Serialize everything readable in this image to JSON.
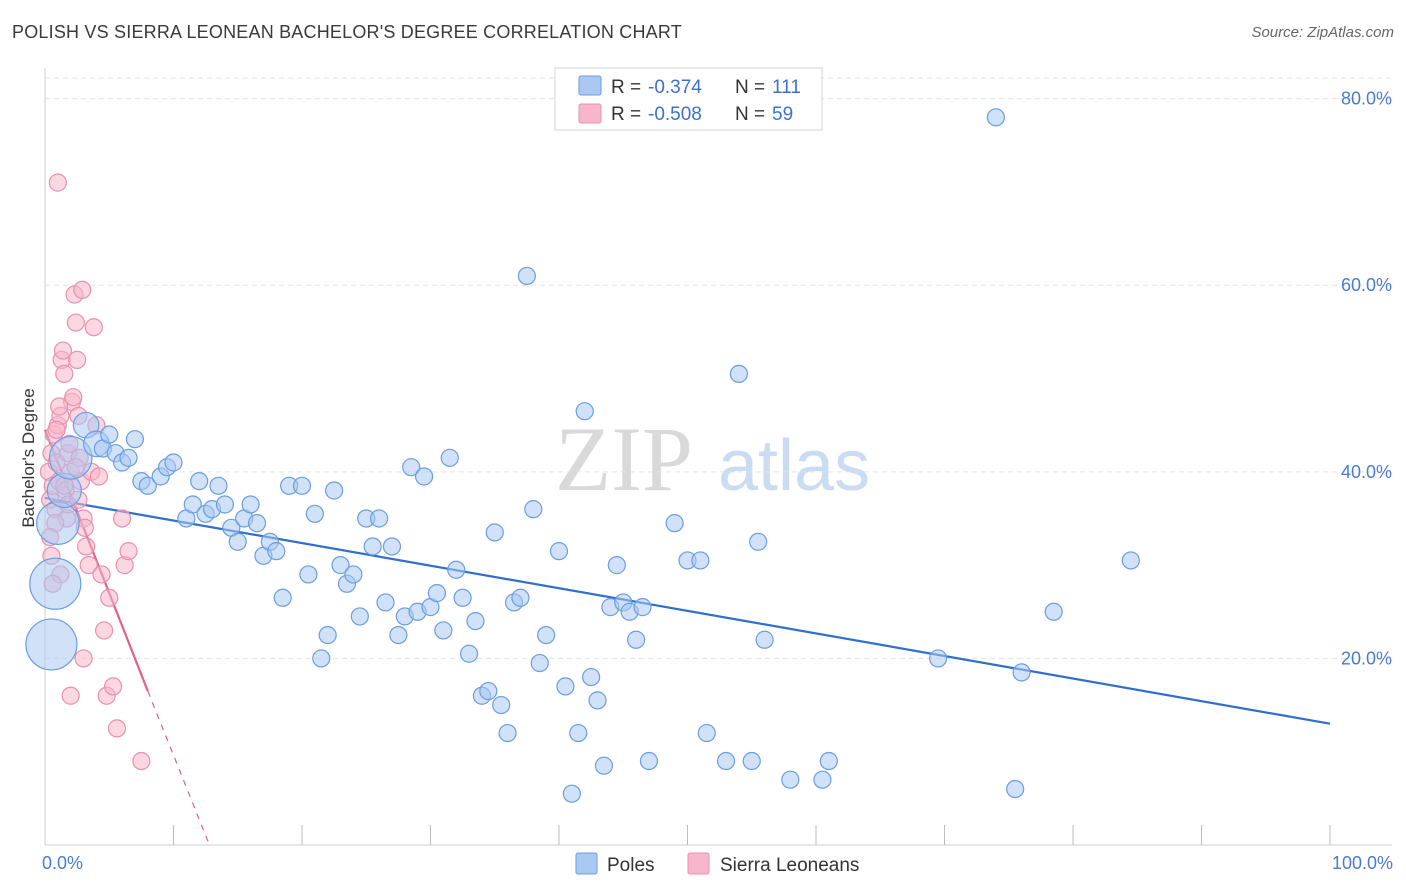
{
  "title": "POLISH VS SIERRA LEONEAN BACHELOR'S DEGREE CORRELATION CHART",
  "source": "Source: ZipAtlas.com",
  "watermark": {
    "zip": "ZIP",
    "atlas": "atlas"
  },
  "colors": {
    "poles_fill": "#a9c8f2",
    "poles_stroke": "#6a9ee0",
    "poles_line": "#2f6fce",
    "sierra_fill": "#f7b6cb",
    "sierra_stroke": "#e890ae",
    "sierra_line": "#e0608e",
    "grid": "#e3e3e3",
    "axis_text": "#4a7bd0"
  },
  "legend": {
    "rows": [
      {
        "r_label": "R =",
        "r_value": "-0.374",
        "n_label": "N =",
        "n_value": "111"
      },
      {
        "r_label": "R =",
        "r_value": "-0.508",
        "n_label": "N =",
        "n_value": "59"
      }
    ]
  },
  "bottom_legend": {
    "poles": "Poles",
    "sierra": "Sierra Leoneans"
  },
  "chart_data": {
    "type": "scatter",
    "title": "POLISH VS SIERRA LEONEAN BACHELOR'S DEGREE CORRELATION CHART",
    "xlabel": "",
    "ylabel": "Bachelor's Degree",
    "xlim": [
      0,
      100
    ],
    "ylim": [
      0,
      82
    ],
    "x_tick_labels": [
      "0.0%",
      "100.0%"
    ],
    "y_ticks": [
      20,
      40,
      60,
      80
    ],
    "y_tick_labels": [
      "20.0%",
      "40.0%",
      "60.0%",
      "80.0%"
    ],
    "grid": true,
    "series": [
      {
        "name": "Poles",
        "r": -0.374,
        "n": 111,
        "trend": {
          "x0": 0,
          "y0": 37.2,
          "x1": 100,
          "y1": 13.0
        },
        "points": [
          [
            0.5,
            21.5,
            3
          ],
          [
            0.8,
            28,
            3
          ],
          [
            1.0,
            34.5,
            2.5
          ],
          [
            1.5,
            38,
            2
          ],
          [
            2.0,
            41.5,
            2.5
          ],
          [
            3.2,
            45,
            1.5
          ],
          [
            4.0,
            43,
            1.5
          ],
          [
            4.5,
            42.5,
            1
          ],
          [
            5.0,
            44,
            1
          ],
          [
            5.5,
            42,
            1
          ],
          [
            6.0,
            41,
            1
          ],
          [
            6.5,
            41.5,
            1
          ],
          [
            7.0,
            43.5,
            1
          ],
          [
            7.5,
            39,
            1
          ],
          [
            8.0,
            38.5,
            1
          ],
          [
            9.0,
            39.5,
            1
          ],
          [
            9.5,
            40.5,
            1
          ],
          [
            10.0,
            41,
            1
          ],
          [
            11.0,
            35,
            1
          ],
          [
            11.5,
            36.5,
            1
          ],
          [
            12.0,
            39,
            1
          ],
          [
            12.5,
            35.5,
            1
          ],
          [
            13.0,
            36,
            1
          ],
          [
            13.5,
            38.5,
            1
          ],
          [
            14.0,
            36.5,
            1
          ],
          [
            14.5,
            34,
            1
          ],
          [
            15.0,
            32.5,
            1
          ],
          [
            15.5,
            35,
            1
          ],
          [
            16.0,
            36.5,
            1
          ],
          [
            16.5,
            34.5,
            1
          ],
          [
            17.0,
            31,
            1
          ],
          [
            17.5,
            32.5,
            1
          ],
          [
            18.0,
            31.5,
            1
          ],
          [
            18.5,
            26.5,
            1
          ],
          [
            19.0,
            38.5,
            1
          ],
          [
            20.0,
            38.5,
            1
          ],
          [
            20.5,
            29,
            1
          ],
          [
            21.0,
            35.5,
            1
          ],
          [
            21.5,
            20,
            1
          ],
          [
            22.0,
            22.5,
            1
          ],
          [
            22.5,
            38,
            1
          ],
          [
            23.0,
            30,
            1
          ],
          [
            23.5,
            28,
            1
          ],
          [
            24.0,
            29,
            1
          ],
          [
            24.5,
            24.5,
            1
          ],
          [
            25.0,
            35,
            1
          ],
          [
            25.5,
            32,
            1
          ],
          [
            26.0,
            35,
            1
          ],
          [
            26.5,
            26,
            1
          ],
          [
            27.0,
            32,
            1
          ],
          [
            27.5,
            22.5,
            1
          ],
          [
            28.0,
            24.5,
            1
          ],
          [
            28.5,
            40.5,
            1
          ],
          [
            29.0,
            25,
            1
          ],
          [
            29.5,
            39.5,
            1
          ],
          [
            30.0,
            25.5,
            1
          ],
          [
            30.5,
            27,
            1
          ],
          [
            31.0,
            23,
            1
          ],
          [
            31.5,
            41.5,
            1
          ],
          [
            32.0,
            29.5,
            1
          ],
          [
            32.5,
            26.5,
            1
          ],
          [
            33.0,
            20.5,
            1
          ],
          [
            33.5,
            24,
            1
          ],
          [
            34.0,
            16,
            1
          ],
          [
            34.5,
            16.5,
            1
          ],
          [
            35.0,
            33.5,
            1
          ],
          [
            35.5,
            15,
            1
          ],
          [
            36.0,
            12,
            1
          ],
          [
            36.5,
            26,
            1
          ],
          [
            37.0,
            26.5,
            1
          ],
          [
            37.5,
            61,
            1
          ],
          [
            38.0,
            36,
            1
          ],
          [
            38.5,
            19.5,
            1
          ],
          [
            39.0,
            22.5,
            1
          ],
          [
            40.0,
            31.5,
            1
          ],
          [
            40.5,
            17,
            1
          ],
          [
            41.0,
            5.5,
            1
          ],
          [
            41.5,
            12,
            1
          ],
          [
            42.0,
            46.5,
            1
          ],
          [
            42.5,
            18,
            1
          ],
          [
            43.0,
            15.5,
            1
          ],
          [
            43.5,
            8.5,
            1
          ],
          [
            44.0,
            25.5,
            1
          ],
          [
            44.5,
            30,
            1
          ],
          [
            45.0,
            26,
            1
          ],
          [
            45.5,
            25,
            1
          ],
          [
            46.0,
            22,
            1
          ],
          [
            46.5,
            25.5,
            1
          ],
          [
            47.0,
            9,
            1
          ],
          [
            49.0,
            34.5,
            1
          ],
          [
            50.0,
            30.5,
            1
          ],
          [
            51.0,
            30.5,
            1
          ],
          [
            51.5,
            12,
            1
          ],
          [
            53.0,
            9,
            1
          ],
          [
            54.0,
            50.5,
            1
          ],
          [
            55.0,
            9,
            1
          ],
          [
            55.5,
            32.5,
            1
          ],
          [
            56.0,
            22,
            1
          ],
          [
            58.0,
            7,
            1
          ],
          [
            60.5,
            7,
            1
          ],
          [
            61.0,
            9,
            1
          ],
          [
            69.5,
            20,
            1
          ],
          [
            74.0,
            78,
            1
          ],
          [
            75.5,
            6,
            1
          ],
          [
            76.0,
            18.5,
            1
          ],
          [
            78.5,
            25,
            1
          ],
          [
            84.5,
            30.5,
            1
          ]
        ]
      },
      {
        "name": "Sierra Leoneans",
        "r": -0.508,
        "n": 59,
        "trend": {
          "x0": 0,
          "y0": 44.5,
          "x1": 8.0,
          "y1": 16.5,
          "dash_x1": 12.8,
          "dash_y1": 0
        },
        "points": [
          [
            0.3,
            40,
            1
          ],
          [
            0.4,
            37,
            1
          ],
          [
            0.5,
            42,
            1
          ],
          [
            0.6,
            38.5,
            1
          ],
          [
            0.7,
            44,
            1
          ],
          [
            0.8,
            36,
            1
          ],
          [
            0.9,
            41,
            1
          ],
          [
            1.0,
            45,
            1
          ],
          [
            1.1,
            39,
            1
          ],
          [
            1.2,
            46,
            1
          ],
          [
            1.3,
            52,
            1
          ],
          [
            1.4,
            53,
            1
          ],
          [
            1.5,
            50.5,
            1
          ],
          [
            1.6,
            38,
            1
          ],
          [
            1.7,
            35,
            1
          ],
          [
            1.8,
            42,
            1
          ],
          [
            1.9,
            43,
            1
          ],
          [
            2.0,
            40,
            1
          ],
          [
            2.1,
            47.5,
            1
          ],
          [
            2.2,
            48,
            1
          ],
          [
            2.3,
            59,
            1
          ],
          [
            2.4,
            56,
            1
          ],
          [
            2.5,
            52,
            1
          ],
          [
            2.6,
            46,
            1
          ],
          [
            2.7,
            41.5,
            1
          ],
          [
            2.8,
            39,
            1
          ],
          [
            2.9,
            59.5,
            1
          ],
          [
            3.0,
            35,
            1
          ],
          [
            3.1,
            34,
            1
          ],
          [
            3.2,
            32,
            1
          ],
          [
            3.4,
            30,
            1
          ],
          [
            3.6,
            40,
            1
          ],
          [
            3.8,
            55.5,
            1
          ],
          [
            4.0,
            45,
            1
          ],
          [
            4.2,
            39.5,
            1
          ],
          [
            4.4,
            29,
            1
          ],
          [
            4.6,
            23,
            1
          ],
          [
            4.8,
            16,
            1
          ],
          [
            5.0,
            26.5,
            1
          ],
          [
            5.3,
            17,
            1
          ],
          [
            5.6,
            12.5,
            1
          ],
          [
            6.0,
            35,
            1
          ],
          [
            6.2,
            30,
            1
          ],
          [
            6.5,
            31.5,
            1
          ],
          [
            7.5,
            9,
            1
          ],
          [
            1.0,
            71,
            1
          ],
          [
            0.5,
            31,
            1
          ],
          [
            0.8,
            34.5,
            1
          ],
          [
            1.5,
            38.5,
            1
          ],
          [
            2.0,
            16,
            1
          ],
          [
            1.2,
            29,
            1
          ],
          [
            0.6,
            28,
            1
          ],
          [
            2.4,
            40.5,
            1
          ],
          [
            3.0,
            20,
            1
          ],
          [
            1.8,
            36.5,
            1
          ],
          [
            0.4,
            33,
            1
          ],
          [
            1.1,
            47,
            1
          ],
          [
            2.6,
            37,
            1
          ],
          [
            0.9,
            44.5,
            1
          ]
        ]
      }
    ]
  }
}
